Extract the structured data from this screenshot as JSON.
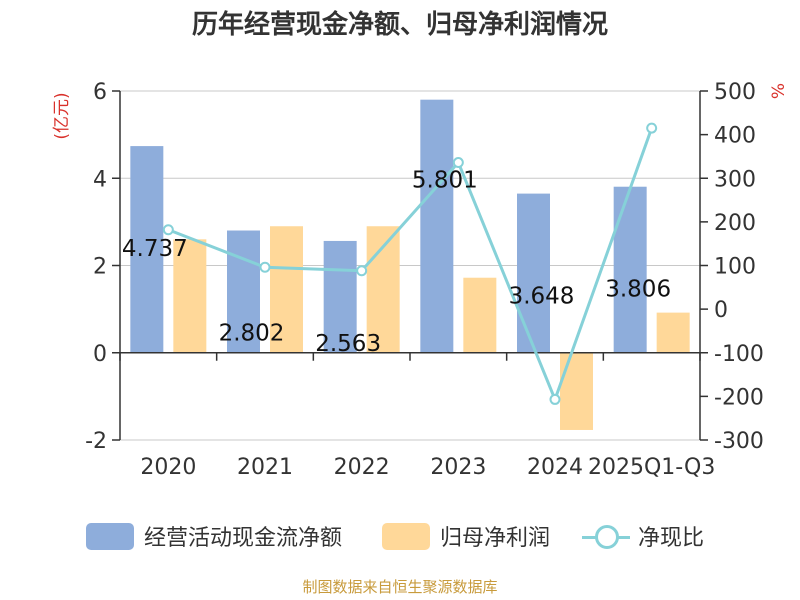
{
  "chart_data": {
    "type": "bar+line",
    "title": "历年经营现金净额、归母净利润情况",
    "source": "制图数据来自恒生聚源数据库",
    "categories": [
      "2020",
      "2021",
      "2022",
      "2023",
      "2024",
      "2025Q1-Q3"
    ],
    "left_axis": {
      "label": "(亿元)",
      "min": -2,
      "max": 6,
      "ticks": [
        -2,
        0,
        2,
        4,
        6
      ]
    },
    "right_axis": {
      "label": "%",
      "min": -300,
      "max": 500,
      "ticks": [
        -300,
        -200,
        -100,
        0,
        100,
        200,
        300,
        400,
        500
      ]
    },
    "series": [
      {
        "name": "经营活动现金流净额",
        "type": "bar",
        "axis": "left",
        "color": "#8eaddb",
        "values": [
          4.737,
          2.802,
          2.563,
          5.801,
          3.648,
          3.806
        ],
        "labels": [
          "4.737",
          "2.802",
          "2.563",
          "5.801",
          "3.648",
          "3.806"
        ]
      },
      {
        "name": "归母净利润",
        "type": "bar",
        "axis": "left",
        "color": "#ffd899",
        "values": [
          2.6,
          2.9,
          2.9,
          1.72,
          -1.77,
          0.92
        ]
      },
      {
        "name": "净现比",
        "type": "line",
        "axis": "right",
        "color": "#86d1d8",
        "values": [
          182,
          96,
          88,
          336,
          -207,
          415
        ]
      }
    ]
  }
}
